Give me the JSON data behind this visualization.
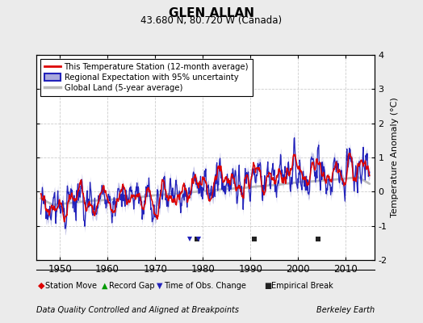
{
  "title": "GLEN ALLAN",
  "subtitle": "43.680 N, 80.720 W (Canada)",
  "ylabel_right": "Temperature Anomaly (°C)",
  "footer_left": "Data Quality Controlled and Aligned at Breakpoints",
  "footer_right": "Berkeley Earth",
  "xlim": [
    1945,
    2016
  ],
  "ylim": [
    -2.0,
    4.0
  ],
  "yticks": [
    -2,
    -1,
    0,
    1,
    2,
    3,
    4
  ],
  "xticks": [
    1950,
    1960,
    1970,
    1980,
    1990,
    2000,
    2010
  ],
  "bg_color": "#ebebeb",
  "plot_bg_color": "#ffffff",
  "grid_color": "#cccccc",
  "station_color": "#dd0000",
  "regional_color": "#2222bb",
  "regional_fill": "#aaaadd",
  "global_color": "#bbbbbb",
  "legend_labels": [
    "This Temperature Station (12-month average)",
    "Regional Expectation with 95% uncertainty",
    "Global Land (5-year average)"
  ],
  "marker_labels": [
    "Station Move",
    "Record Gap",
    "Time of Obs. Change",
    "Empirical Break"
  ],
  "marker_colors": [
    "#dd0000",
    "#009900",
    "#2222bb",
    "#222222"
  ],
  "empirical_breaks": [
    1978.7,
    1990.8,
    2004.2
  ],
  "time_obs_changes": [
    1977.3,
    1979.2
  ],
  "seed": 17
}
